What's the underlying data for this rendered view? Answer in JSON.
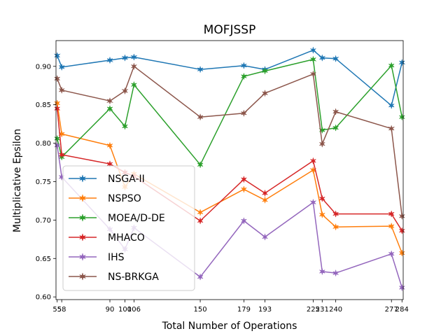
{
  "chart_data": {
    "type": "line",
    "title": "MOFJSSP",
    "xlabel": "Total Number of Operations",
    "ylabel": "Multiplicative Epsilon",
    "x": [
      55,
      58,
      90,
      100,
      106,
      150,
      179,
      193,
      225,
      231,
      240,
      277,
      284
    ],
    "xticks": [
      "55",
      "58",
      "90",
      "100",
      "106",
      "150",
      "179",
      "193",
      "225",
      "231",
      "240",
      "277",
      "284"
    ],
    "xlim": [
      54.2,
      284.8
    ],
    "ylim": [
      0.5965,
      0.9335
    ],
    "yticks": [
      0.6,
      0.65,
      0.7,
      0.75,
      0.8,
      0.85,
      0.9
    ],
    "ytick_labels": [
      "0.60",
      "0.65",
      "0.70",
      "0.75",
      "0.80",
      "0.85",
      "0.90"
    ],
    "legend_position": "lower-left",
    "grid": false,
    "series": [
      {
        "name": "NSGA-II",
        "color": "#1f77b4",
        "values": [
          0.914,
          0.899,
          0.908,
          0.911,
          0.912,
          0.896,
          0.901,
          0.896,
          0.921,
          0.911,
          0.91,
          0.849,
          0.905
        ]
      },
      {
        "name": "NSPSO",
        "color": "#ff7f0e",
        "values": [
          0.852,
          0.812,
          0.797,
          0.743,
          0.76,
          0.71,
          0.74,
          0.726,
          0.765,
          0.707,
          0.691,
          0.692,
          0.657
        ]
      },
      {
        "name": "MOEA/D-DE",
        "color": "#2ca02c",
        "values": [
          0.806,
          0.782,
          0.845,
          0.822,
          0.876,
          0.772,
          0.887,
          0.894,
          0.909,
          0.817,
          0.82,
          0.901,
          0.834
        ]
      },
      {
        "name": "MHACO",
        "color": "#d62728",
        "values": [
          0.845,
          0.785,
          0.773,
          0.762,
          0.757,
          0.699,
          0.753,
          0.735,
          0.777,
          0.728,
          0.708,
          0.708,
          0.686
        ]
      },
      {
        "name": "IHS",
        "color": "#9467bd",
        "values": [
          0.797,
          0.756,
          0.688,
          0.662,
          0.69,
          0.626,
          0.699,
          0.678,
          0.723,
          0.633,
          0.631,
          0.656,
          0.612
        ]
      },
      {
        "name": "NS-BRKGA",
        "color": "#8c564b",
        "values": [
          0.884,
          0.869,
          0.855,
          0.868,
          0.9,
          0.834,
          0.839,
          0.865,
          0.89,
          0.799,
          0.841,
          0.819,
          0.705
        ]
      }
    ]
  }
}
